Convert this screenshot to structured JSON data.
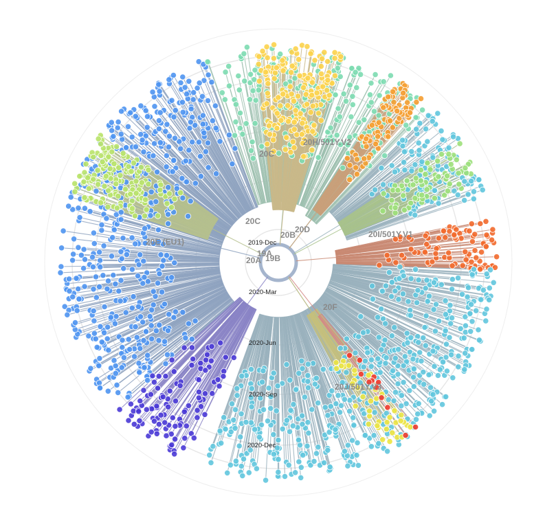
{
  "view": {
    "layout": "radial",
    "time_axis_labels": [
      "2019-Dec",
      "2020-Mar",
      "2020-Jun",
      "2020-Sep",
      "2020-Dec"
    ]
  },
  "clade_labels": [
    {
      "id": "19A",
      "text": "19A"
    },
    {
      "id": "19B",
      "text": "19B"
    },
    {
      "id": "20A",
      "text": "20A"
    },
    {
      "id": "20B",
      "text": "20B"
    },
    {
      "id": "20C_inner",
      "text": "20C"
    },
    {
      "id": "20C_outer",
      "text": "20C"
    },
    {
      "id": "20D",
      "text": "20D"
    },
    {
      "id": "20E",
      "text": "20E (EU1)"
    },
    {
      "id": "20F",
      "text": "20F"
    },
    {
      "id": "20H",
      "text": "20H/501Y.V2"
    },
    {
      "id": "20I",
      "text": "20I/501Y.V1"
    },
    {
      "id": "20J",
      "text": "20J/501Y.V3"
    }
  ],
  "clades": [
    {
      "id": "20A-blue",
      "color": "#4f95f1",
      "branch_color": "#8fa3c0",
      "start_deg": 228,
      "end_deg": 340,
      "count": 520
    },
    {
      "id": "20E",
      "color": "#b9e36a",
      "branch_color": "#b5c08e",
      "start_deg": 288,
      "end_deg": 306,
      "count": 150
    },
    {
      "id": "20A-purple",
      "color": "#4a3ad6",
      "branch_color": "#8a84c6",
      "start_deg": 205,
      "end_deg": 228,
      "count": 110
    },
    {
      "id": "20C",
      "color": "#7ddcb1",
      "branch_color": "#9ebfaf",
      "start_deg": 340,
      "end_deg": 30,
      "count": 160
    },
    {
      "id": "20H",
      "color": "#fcd34d",
      "branch_color": "#c9b98a",
      "start_deg": 354,
      "end_deg": 17,
      "count": 180
    },
    {
      "id": "20C-right",
      "color": "#7ddcb1",
      "branch_color": "#9ebfaf",
      "start_deg": 30,
      "end_deg": 45,
      "count": 60
    },
    {
      "id": "20H-orange",
      "color": "#f59f32",
      "branch_color": "#c9a07a",
      "start_deg": 33,
      "end_deg": 42,
      "count": 90
    },
    {
      "id": "20D-cyan",
      "color": "#62c7de",
      "branch_color": "#9ab1bd",
      "start_deg": 45,
      "end_deg": 72,
      "count": 120
    },
    {
      "id": "20D-green",
      "color": "#9de07a",
      "branch_color": "#a8c28c",
      "start_deg": 56,
      "end_deg": 68,
      "count": 70
    },
    {
      "id": "20I",
      "color": "#f26a2e",
      "branch_color": "#c98a73",
      "start_deg": 78,
      "end_deg": 92,
      "count": 90
    },
    {
      "id": "20B-cyan",
      "color": "#62c7de",
      "branch_color": "#9ab1bd",
      "start_deg": 92,
      "end_deg": 200,
      "count": 520
    },
    {
      "id": "20B-yellow",
      "color": "#ece442",
      "branch_color": "#c5c07b",
      "start_deg": 140,
      "end_deg": 152,
      "count": 40
    },
    {
      "id": "20J",
      "color": "#ef3b2c",
      "branch_color": "#d48a86",
      "start_deg": 140,
      "end_deg": 144,
      "count": 12
    }
  ]
}
